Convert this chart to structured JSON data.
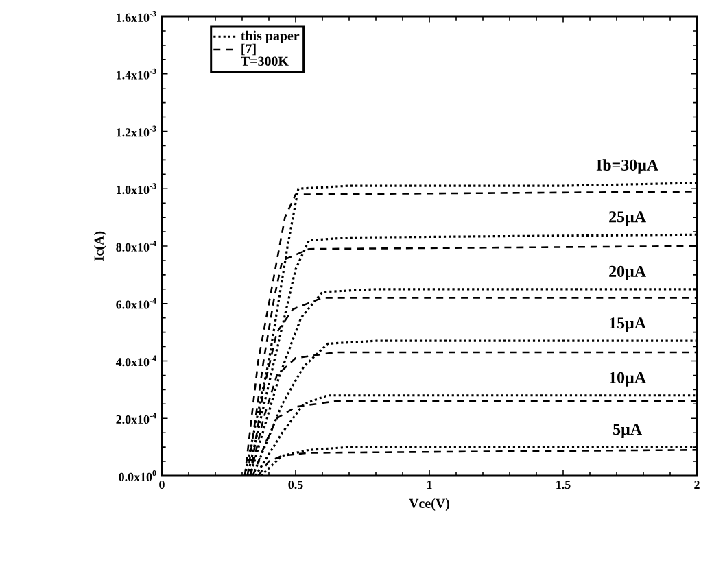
{
  "chart_data": {
    "type": "line",
    "xlabel": "Vce(V)",
    "ylabel": "Ic(A)",
    "xlim": [
      0,
      2
    ],
    "xticks": [
      0,
      0.5,
      1,
      1.5,
      2
    ],
    "ylim": [
      0,
      0.0016
    ],
    "yticks": [
      {
        "value": 0,
        "label": "0.0x10$^{0}$"
      },
      {
        "value": 0.0002,
        "label": "2.0x10$^{-4}$"
      },
      {
        "value": 0.0004,
        "label": "4.0x10$^{-4}$"
      },
      {
        "value": 0.0006,
        "label": "6.0x10$^{-4}$"
      },
      {
        "value": 0.0008,
        "label": "8.0x10$^{-4}$"
      },
      {
        "value": 0.001,
        "label": "1.0x10$^{-3}$"
      },
      {
        "value": 0.0012,
        "label": "1.2x10$^{-3}$"
      },
      {
        "value": 0.0014,
        "label": "1.4x10$^{-3}$"
      },
      {
        "value": 0.0016,
        "label": "1.6x10$^{-3}$"
      }
    ],
    "grid": false,
    "legend": "top left",
    "marker": "none",
    "series": [
      {
        "name": "this paper",
        "color": "#000000",
        "line_style": "dotted",
        "x": [
          0.31,
          0.4,
          0.47,
          0.51,
          0.7,
          1.5,
          2
        ],
        "values": [
          0,
          0.0004,
          0.0008,
          0.001,
          0.00101,
          0.00101,
          0.00102
        ]
      },
      {
        "color": "#000000",
        "line_style": "dotted",
        "x": [
          0.32,
          0.42,
          0.5,
          0.55,
          0.7,
          2
        ],
        "values": [
          0,
          0.0004,
          0.00072,
          0.00082,
          0.00083,
          0.00084
        ]
      },
      {
        "color": "#000000",
        "line_style": "dotted",
        "x": [
          0.33,
          0.44,
          0.52,
          0.6,
          0.8,
          2
        ],
        "values": [
          0,
          0.00035,
          0.00055,
          0.00064,
          0.00065,
          0.00065
        ]
      },
      {
        "color": "#000000",
        "line_style": "dotted",
        "x": [
          0.34,
          0.45,
          0.53,
          0.62,
          0.8,
          2
        ],
        "values": [
          0,
          0.00025,
          0.00038,
          0.00046,
          0.00047,
          0.00047
        ]
      },
      {
        "color": "#000000",
        "line_style": "dotted",
        "x": [
          0.35,
          0.45,
          0.53,
          0.62,
          2
        ],
        "values": [
          0,
          0.00015,
          0.00025,
          0.00028,
          0.00028
        ]
      },
      {
        "color": "#000000",
        "line_style": "dotted",
        "x": [
          0.37,
          0.45,
          0.55,
          0.7,
          2
        ],
        "values": [
          0,
          7e-05,
          9e-05,
          0.0001,
          0.0001
        ]
      },
      {
        "name": "[7]",
        "color": "#000000",
        "line_style": "dashed",
        "x": [
          0.31,
          0.36,
          0.42,
          0.46,
          0.5,
          2
        ],
        "values": [
          0,
          0.0004,
          0.0007,
          0.0009,
          0.00098,
          0.00099
        ]
      },
      {
        "color": "#000000",
        "line_style": "dashed",
        "x": [
          0.32,
          0.38,
          0.42,
          0.45,
          0.55,
          2
        ],
        "values": [
          0,
          0.0004,
          0.00062,
          0.00075,
          0.00079,
          0.0008
        ]
      },
      {
        "color": "#000000",
        "line_style": "dashed",
        "x": [
          0.33,
          0.38,
          0.43,
          0.49,
          0.6,
          2
        ],
        "values": [
          0,
          0.0003,
          0.0005,
          0.00058,
          0.00062,
          0.00062
        ]
      },
      {
        "color": "#000000",
        "line_style": "dashed",
        "x": [
          0.33,
          0.38,
          0.43,
          0.5,
          0.65,
          2
        ],
        "values": [
          0,
          0.0002,
          0.00035,
          0.00041,
          0.00043,
          0.00043
        ]
      },
      {
        "color": "#000000",
        "line_style": "dashed",
        "x": [
          0.34,
          0.39,
          0.43,
          0.5,
          0.65,
          2
        ],
        "values": [
          0,
          0.00012,
          0.0002,
          0.00024,
          0.00026,
          0.00026
        ]
      },
      {
        "color": "#000000",
        "line_style": "dashed",
        "x": [
          0.36,
          0.4,
          0.45,
          0.55,
          2
        ],
        "values": [
          0,
          5e-05,
          7e-05,
          8e-05,
          9e-05
        ]
      }
    ],
    "annotations": [
      "T=300K",
      "Ib=30µA",
      "25µA",
      "20µA",
      "15µA",
      "10µA",
      "5µA"
    ]
  }
}
